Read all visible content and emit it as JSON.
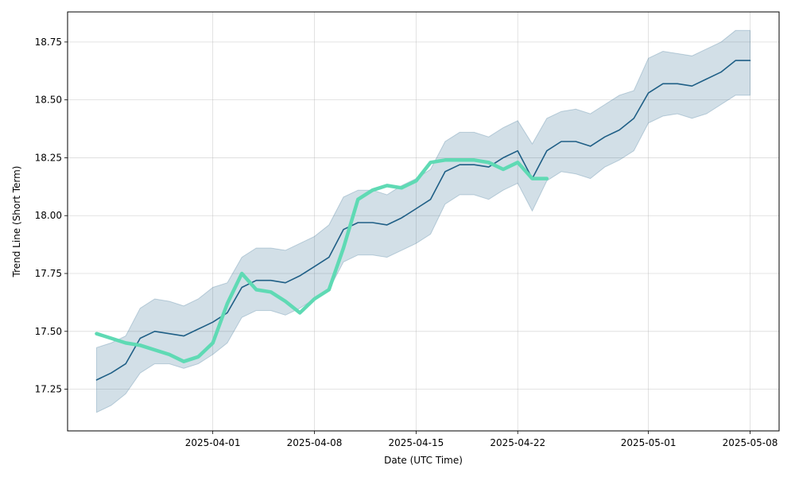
{
  "chart_data": {
    "type": "line",
    "xlabel": "Date (UTC Time)",
    "ylabel": "Trend Line (Short Term)",
    "grid": true,
    "xlim": [
      "2025-03-22",
      "2025-05-10"
    ],
    "ylim": [
      17.07,
      18.88
    ],
    "x_ticks": [
      "2025-04-01",
      "2025-04-08",
      "2025-04-15",
      "2025-04-22",
      "2025-05-01",
      "2025-05-08"
    ],
    "y_ticks": [
      17.25,
      17.5,
      17.75,
      18.0,
      18.25,
      18.5,
      18.75
    ],
    "band": {
      "color": "#1f5f86",
      "opacity": 0.2,
      "dates": [
        "2025-03-24",
        "2025-03-25",
        "2025-03-26",
        "2025-03-27",
        "2025-03-28",
        "2025-03-29",
        "2025-03-30",
        "2025-03-31",
        "2025-04-01",
        "2025-04-02",
        "2025-04-03",
        "2025-04-04",
        "2025-04-05",
        "2025-04-06",
        "2025-04-07",
        "2025-04-08",
        "2025-04-09",
        "2025-04-10",
        "2025-04-11",
        "2025-04-12",
        "2025-04-13",
        "2025-04-14",
        "2025-04-15",
        "2025-04-16",
        "2025-04-17",
        "2025-04-18",
        "2025-04-19",
        "2025-04-20",
        "2025-04-21",
        "2025-04-22",
        "2025-04-23",
        "2025-04-24",
        "2025-04-25",
        "2025-04-26",
        "2025-04-27",
        "2025-04-28",
        "2025-04-29",
        "2025-04-30",
        "2025-05-01",
        "2025-05-02",
        "2025-05-03",
        "2025-05-04",
        "2025-05-05",
        "2025-05-06",
        "2025-05-07",
        "2025-05-08"
      ],
      "upper": [
        17.43,
        17.45,
        17.48,
        17.6,
        17.64,
        17.63,
        17.61,
        17.64,
        17.69,
        17.71,
        17.82,
        17.86,
        17.86,
        17.85,
        17.88,
        17.91,
        17.96,
        18.08,
        18.11,
        18.11,
        18.09,
        18.13,
        18.16,
        18.2,
        18.32,
        18.36,
        18.36,
        18.34,
        18.38,
        18.41,
        18.31,
        18.42,
        18.45,
        18.46,
        18.44,
        18.48,
        18.52,
        18.54,
        18.68,
        18.71,
        18.7,
        18.69,
        18.72,
        18.75,
        18.8,
        18.8
      ],
      "lower": [
        17.15,
        17.18,
        17.23,
        17.32,
        17.36,
        17.36,
        17.34,
        17.36,
        17.4,
        17.45,
        17.56,
        17.59,
        17.59,
        17.57,
        17.6,
        17.64,
        17.68,
        17.8,
        17.83,
        17.83,
        17.82,
        17.85,
        17.88,
        17.92,
        18.05,
        18.09,
        18.09,
        18.07,
        18.11,
        18.14,
        18.02,
        18.15,
        18.19,
        18.18,
        18.16,
        18.21,
        18.24,
        18.28,
        18.4,
        18.43,
        18.44,
        18.42,
        18.44,
        18.48,
        18.52,
        18.52
      ]
    },
    "series": [
      {
        "color": "#1f5f86",
        "width": 1.6,
        "dates": [
          "2025-03-24",
          "2025-03-25",
          "2025-03-26",
          "2025-03-27",
          "2025-03-28",
          "2025-03-29",
          "2025-03-30",
          "2025-03-31",
          "2025-04-01",
          "2025-04-02",
          "2025-04-03",
          "2025-04-04",
          "2025-04-05",
          "2025-04-06",
          "2025-04-07",
          "2025-04-08",
          "2025-04-09",
          "2025-04-10",
          "2025-04-11",
          "2025-04-12",
          "2025-04-13",
          "2025-04-14",
          "2025-04-15",
          "2025-04-16",
          "2025-04-17",
          "2025-04-18",
          "2025-04-19",
          "2025-04-20",
          "2025-04-21",
          "2025-04-22",
          "2025-04-23",
          "2025-04-24",
          "2025-04-25",
          "2025-04-26",
          "2025-04-27",
          "2025-04-28",
          "2025-04-29",
          "2025-04-30",
          "2025-05-01",
          "2025-05-02",
          "2025-05-03",
          "2025-05-04",
          "2025-05-05",
          "2025-05-06",
          "2025-05-07",
          "2025-05-08"
        ],
        "values": [
          17.29,
          17.32,
          17.36,
          17.47,
          17.5,
          17.49,
          17.48,
          17.51,
          17.54,
          17.58,
          17.69,
          17.72,
          17.72,
          17.71,
          17.74,
          17.78,
          17.82,
          17.94,
          17.97,
          17.97,
          17.96,
          17.99,
          18.03,
          18.07,
          18.19,
          18.22,
          18.22,
          18.21,
          18.25,
          18.28,
          18.16,
          18.28,
          18.32,
          18.32,
          18.3,
          18.34,
          18.37,
          18.42,
          18.53,
          18.57,
          18.57,
          18.56,
          18.59,
          18.62,
          18.67,
          18.67
        ]
      },
      {
        "color": "#5fdab4",
        "width": 4.5,
        "dates": [
          "2025-03-24",
          "2025-03-25",
          "2025-03-26",
          "2025-03-27",
          "2025-03-28",
          "2025-03-29",
          "2025-03-30",
          "2025-03-31",
          "2025-04-01",
          "2025-04-02",
          "2025-04-03",
          "2025-04-04",
          "2025-04-05",
          "2025-04-06",
          "2025-04-07",
          "2025-04-08",
          "2025-04-09",
          "2025-04-10",
          "2025-04-11",
          "2025-04-12",
          "2025-04-13",
          "2025-04-14",
          "2025-04-15",
          "2025-04-16",
          "2025-04-17",
          "2025-04-18",
          "2025-04-19",
          "2025-04-20",
          "2025-04-21",
          "2025-04-22",
          "2025-04-23",
          "2025-04-24"
        ],
        "values": [
          17.49,
          17.47,
          17.45,
          17.44,
          17.42,
          17.4,
          17.37,
          17.39,
          17.45,
          17.62,
          17.75,
          17.68,
          17.67,
          17.63,
          17.58,
          17.64,
          17.68,
          17.86,
          18.07,
          18.11,
          18.13,
          18.12,
          18.15,
          18.23,
          18.24,
          18.24,
          18.24,
          18.23,
          18.2,
          18.23,
          18.16,
          18.16
        ]
      }
    ]
  }
}
